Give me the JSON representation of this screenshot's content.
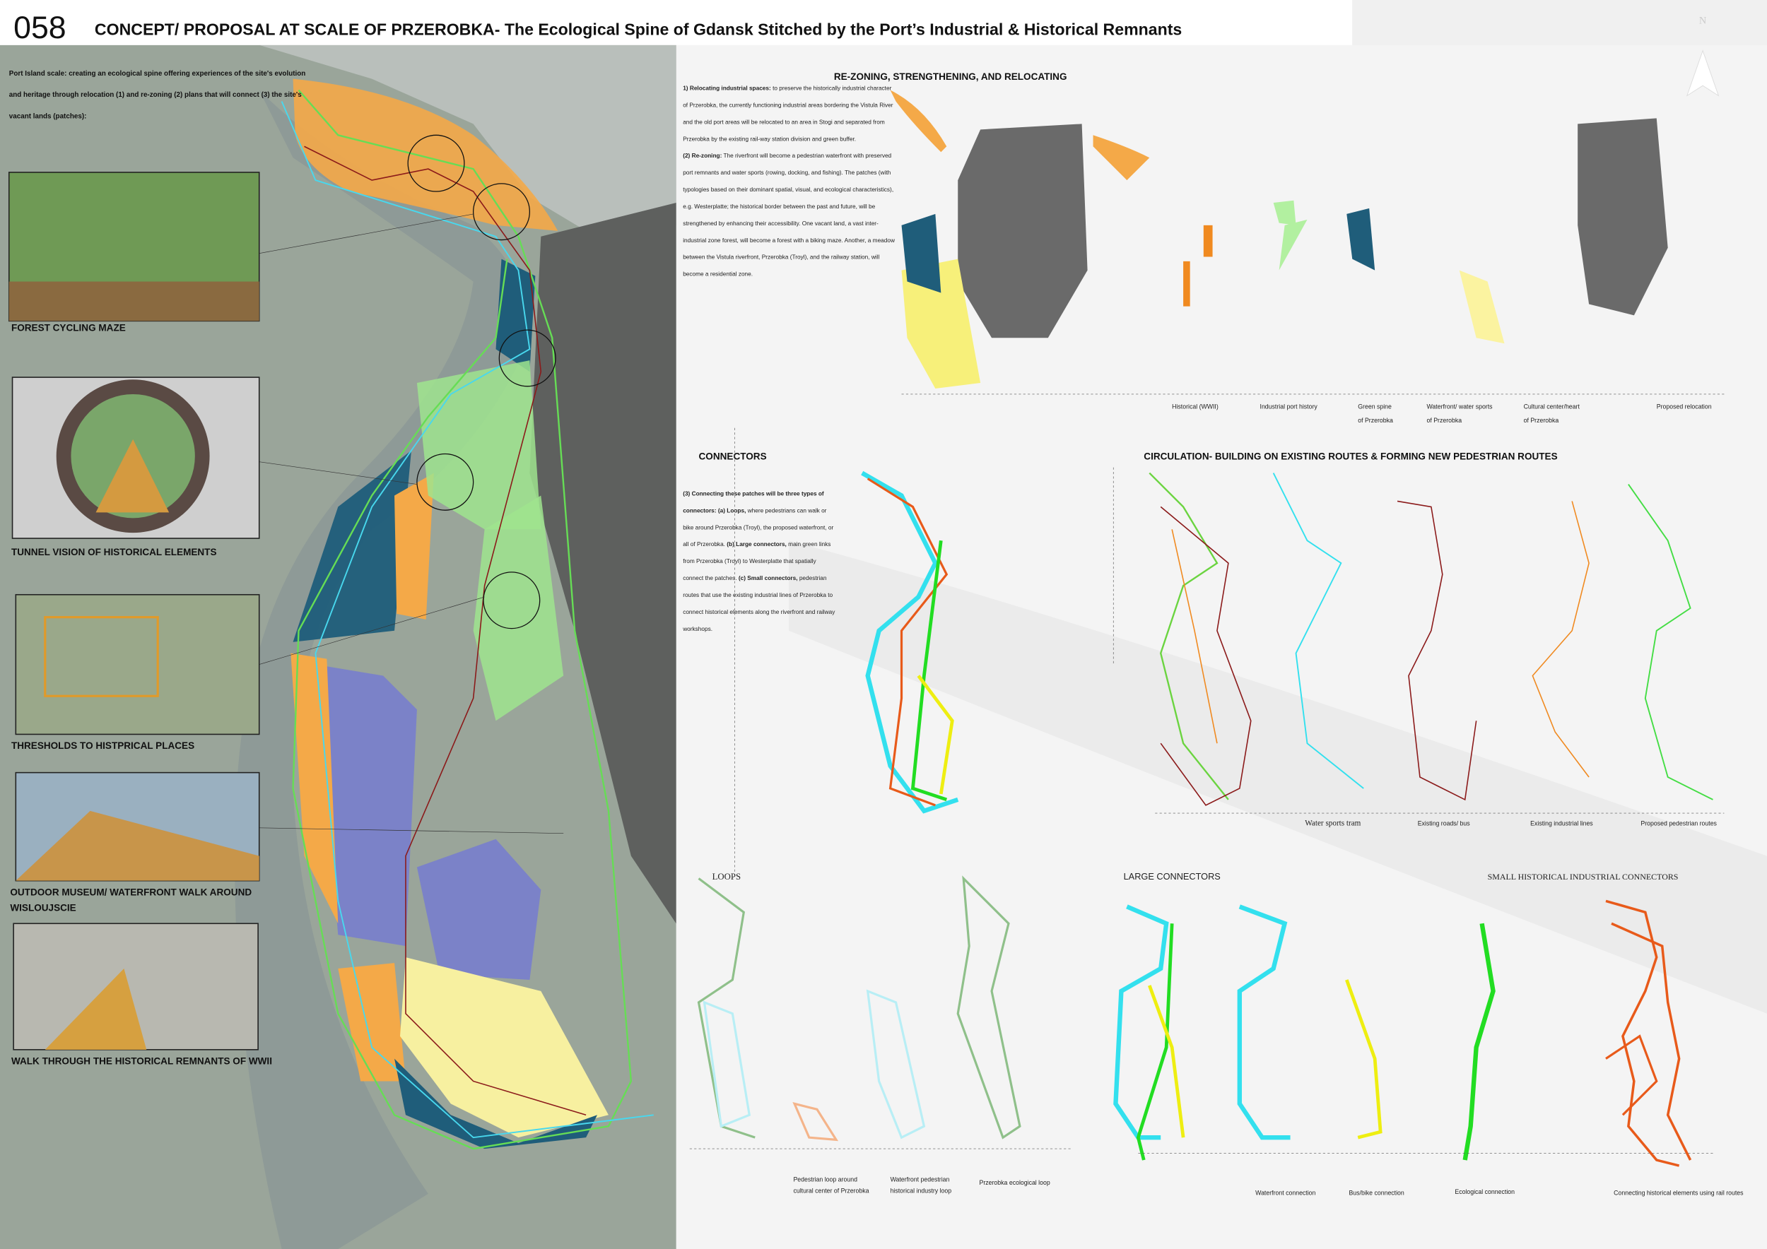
{
  "header": {
    "number": "058",
    "title": "CONCEPT/ PROPOSAL AT SCALE OF PRZEROBKA- The Ecological Spine of Gdansk Stitched by the Port’s Industrial & Historical Remnants",
    "north": "N"
  },
  "intro": "Port Island scale: creating an ecological spine offering experiences of the site's evolution and heritage through relocation (1) and re-zoning (2) plans that will connect (3) the site's vacant lands (patches):",
  "images": [
    "FOREST CYCLING MAZE",
    "TUNNEL VISION OF HISTORICAL ELEMENTS",
    "THRESHOLDS TO HISTPRICAL PLACES",
    "OUTDOOR MUSEUM/ WATERFRONT WALK AROUND WISLOUJSCIE",
    "WALK THROUGH THE HISTORICAL REMNANTS OF WWII"
  ],
  "rezoning": {
    "title": "RE-ZONING, STRENGTHENING, AND RELOCATING",
    "relocating_head": "1) Relocating industrial spaces:",
    "relocating_text": "to preserve the historically industrial character of Przerobka, the currently functioning industrial areas bordering the Vistula River and the old port areas will be relocated to an area in Stogi and separated from Przerobka by the existing rail-way station division and green buffer.",
    "rezoning_head": "(2) Re-zoning:",
    "rezoning_text": "The riverfront will become a pedestrian waterfront with preserved port remnants and water sports (rowing, docking, and fishing). The patches (with typologies based on their dominant spatial, visual, and ecological characteristics), e.g. Westerplatte; the historical border between the past and future, will be strengthened by enhancing their accessibility. One vacant land, a vast inter-industrial zone forest, will become a forest with a biking maze. Another, a meadow between the Vistula riverfront, Przerobka (Troyl), and the railway station, will become a residential zone.",
    "legend": [
      "Historical (WWII)",
      "Industrial port history",
      "Green spine",
      "of Przerobka",
      "Waterfront/ water sports",
      "of Przerobka",
      "Cultural center/heart",
      "of Przerobka",
      "Proposed relocation"
    ]
  },
  "connectors": {
    "title": "CONNECTORS",
    "head": "(3) Connecting these patches will be three types of connectors:",
    "a_head": "(a) Loops,",
    "a_text": "where pedestrians can walk or bike around Przerobka (Troyl), the proposed waterfront, or all of Przerobka.",
    "b_head": "(b) Large connectors,",
    "b_text": "main green links from Przerobka (Troyl) to Westerplatte that spatially connect the patches.",
    "c_head": "(c) Small connectors,",
    "c_text": "pedestrian routes that use the existing industrial lines of Przerobka to connect historical elements along the riverfront and railway workshops."
  },
  "circulation": {
    "title": "CIRCULATION- BUILDING ON EXISTING ROUTES & FORMING NEW PEDESTRIAN ROUTES",
    "labels": [
      "Water sports tram",
      "Existing roads/ bus",
      "Existing industrial lines",
      "Proposed pedestrian routes"
    ]
  },
  "loops": {
    "title": "LOOPS",
    "labels": [
      "Pedestrian loop around",
      "cultural center of Przerobka",
      "Waterfront pedestrian",
      "historical industry loop",
      "Przerobka ecological loop"
    ]
  },
  "large_connectors": {
    "title": "LARGE CONNECTORS",
    "labels": [
      "Waterfront connection",
      "Bus/bike connection",
      "Ecological connection"
    ]
  },
  "small_connectors": {
    "title": "SMALL HISTORICAL INDUSTRIAL  CONNECTORS",
    "labels": [
      "Connecting historical elements using rail routes"
    ]
  }
}
